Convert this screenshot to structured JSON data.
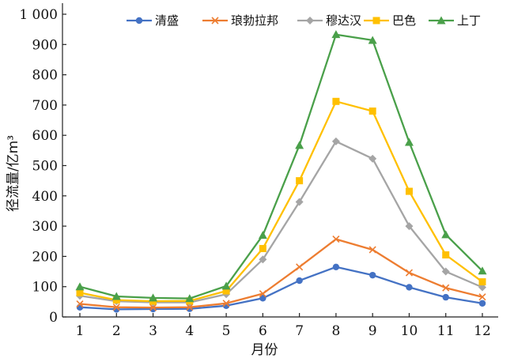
{
  "chart_data": {
    "type": "line",
    "xlabel": "月份",
    "ylabel": "径流量/亿m³",
    "ylim": [
      0,
      1000
    ],
    "yticks": [
      "0",
      "100",
      "200",
      "300",
      "400",
      "500",
      "600",
      "700",
      "800",
      "900",
      "1 000"
    ],
    "yticks_values": [
      0,
      100,
      200,
      300,
      400,
      500,
      600,
      700,
      800,
      900,
      1000
    ],
    "categories": [
      "1",
      "2",
      "3",
      "4",
      "5",
      "6",
      "7",
      "8",
      "9",
      "10",
      "11",
      "12"
    ],
    "legend_position": "top",
    "grid": false,
    "series": [
      {
        "name": "清盛",
        "color": "#4472c4",
        "marker": "circle",
        "values": [
          32,
          25,
          26,
          27,
          37,
          62,
          120,
          165,
          138,
          98,
          65,
          45
        ]
      },
      {
        "name": "琅勃拉邦",
        "color": "#ed7d31",
        "marker": "x",
        "values": [
          43,
          32,
          31,
          32,
          45,
          77,
          165,
          257,
          222,
          146,
          96,
          66
        ]
      },
      {
        "name": "穆达汉",
        "color": "#a5a5a5",
        "marker": "diamond",
        "values": [
          70,
          52,
          48,
          48,
          75,
          190,
          380,
          580,
          523,
          300,
          150,
          98
        ]
      },
      {
        "name": "巴色",
        "color": "#ffc000",
        "marker": "square",
        "values": [
          80,
          56,
          52,
          53,
          86,
          226,
          450,
          712,
          680,
          415,
          205,
          116
        ]
      },
      {
        "name": "上丁",
        "color": "#4aa04a",
        "marker": "triangle",
        "values": [
          100,
          68,
          63,
          61,
          102,
          270,
          567,
          933,
          914,
          577,
          272,
          152
        ]
      }
    ]
  }
}
